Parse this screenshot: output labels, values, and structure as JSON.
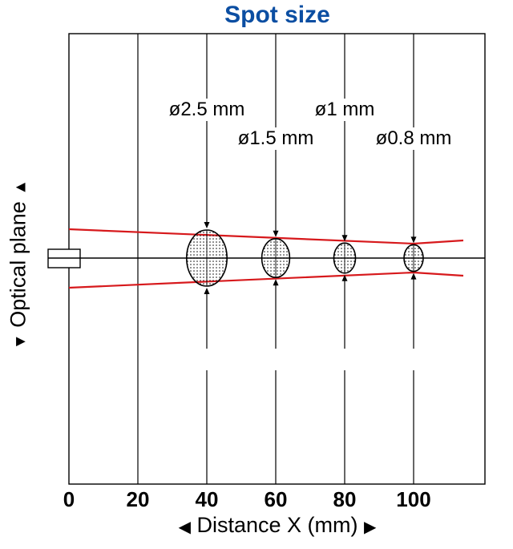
{
  "title": "Spot size",
  "title_color": "#0b4ea2",
  "beam_color": "#d7191c",
  "y_axis": {
    "arrow_up": "▲",
    "label": "Optical plane",
    "arrow_down": "▼"
  },
  "x_axis": {
    "arrow_left": "◀",
    "label": "Distance X (mm)",
    "arrow_right": "▶",
    "ticks": [
      0,
      20,
      40,
      60,
      80,
      100
    ],
    "range": [
      0,
      120
    ]
  },
  "spots": [
    {
      "distance": 40,
      "label": "ø2.5 mm",
      "diameter_mm": 2.5
    },
    {
      "distance": 60,
      "label": "ø1.5 mm",
      "diameter_mm": 1.5
    },
    {
      "distance": 80,
      "label": "ø1 mm",
      "diameter_mm": 1.0
    },
    {
      "distance": 100,
      "label": "ø0.8 mm",
      "diameter_mm": 0.8
    }
  ]
}
